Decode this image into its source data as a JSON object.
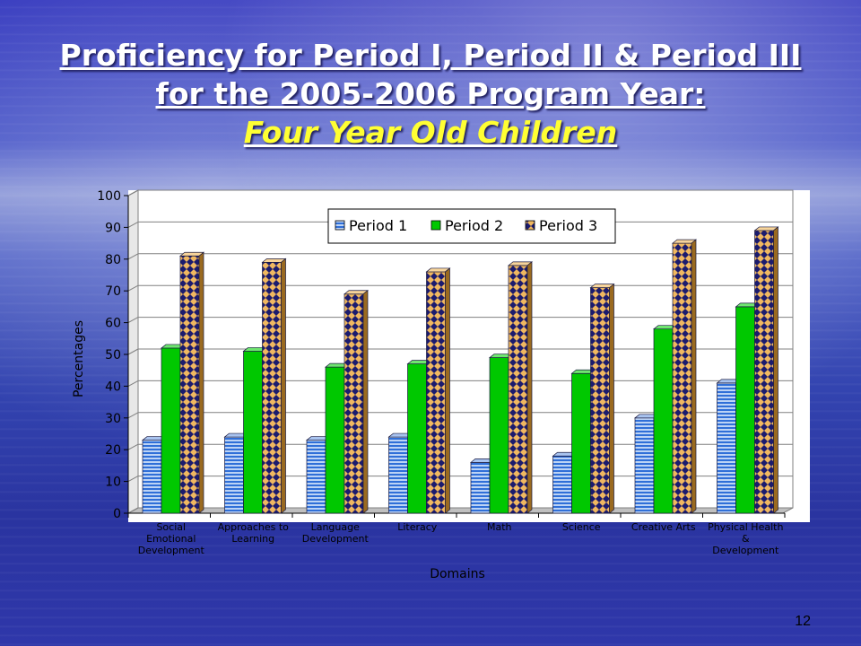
{
  "slide": {
    "title_line1": "Proficiency for Period I, Period II & Period III",
    "title_line2": "for the 2005-2006 Program Year:",
    "subtitle": "Four Year Old Children",
    "page_number": "12"
  },
  "chart_data": {
    "type": "bar",
    "xlabel": "Domains",
    "ylabel": "Percentages",
    "ylim": [
      0,
      100
    ],
    "yticks": [
      0,
      10,
      20,
      30,
      40,
      50,
      60,
      70,
      80,
      90,
      100
    ],
    "grid": true,
    "legend_position": "top-right",
    "categories": [
      [
        "Social",
        "Emotional",
        "Development"
      ],
      [
        "Approaches to",
        "Learning"
      ],
      [
        "Language",
        "Development"
      ],
      [
        "Literacy"
      ],
      [
        "Math"
      ],
      [
        "Science"
      ],
      [
        "Creative Arts"
      ],
      [
        "Physical Health",
        "&",
        "Development"
      ]
    ],
    "series": [
      {
        "name": "Period 1",
        "values": [
          23,
          24,
          23,
          24,
          16,
          18,
          30,
          41
        ],
        "color": "#3a7de0",
        "pattern": "horizontal-stripes"
      },
      {
        "name": "Period 2",
        "values": [
          52,
          51,
          46,
          47,
          49,
          44,
          58,
          65
        ],
        "color": "#00cc00",
        "pattern": "solid"
      },
      {
        "name": "Period 3",
        "values": [
          81,
          79,
          69,
          76,
          78,
          71,
          85,
          89
        ],
        "color": "#e8b060",
        "pattern": "checkerboard-navy"
      }
    ]
  }
}
